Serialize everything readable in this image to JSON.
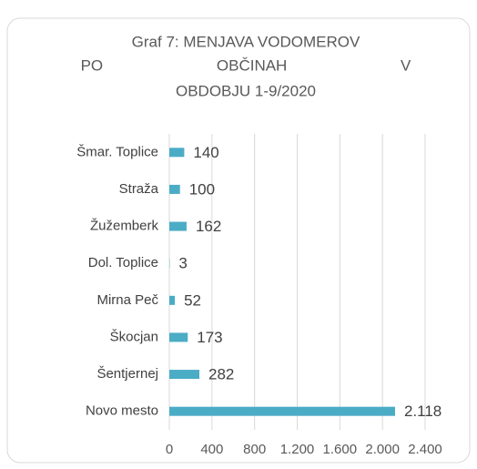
{
  "chart_data": {
    "type": "barh",
    "title": [
      "Graf 7: MENJAVA VODOMEROV",
      "PO OBČINAH V",
      "OBDOBJU 1-9/2020"
    ],
    "categories": [
      "Šmar. Toplice",
      "Straža",
      "Žužemberk",
      "Dol. Toplice",
      "Mirna Peč",
      "Škocjan",
      "Šentjernej",
      "Novo mesto"
    ],
    "values": [
      140,
      100,
      162,
      3,
      52,
      173,
      282,
      2118
    ],
    "value_labels": [
      "140",
      "100",
      "162",
      "3",
      "52",
      "173",
      "282",
      "2.118"
    ],
    "color": "#4bacc6",
    "xlim": [
      0,
      2400
    ],
    "xticks": [
      0,
      400,
      800,
      {
        "value": 1200,
        "label": "1.200"
      },
      {
        "value": 1600,
        "label": "1.600"
      },
      {
        "value": 2000,
        "label": "2.000"
      },
      {
        "value": 2400,
        "label": "2.400"
      }
    ],
    "grid": true
  }
}
